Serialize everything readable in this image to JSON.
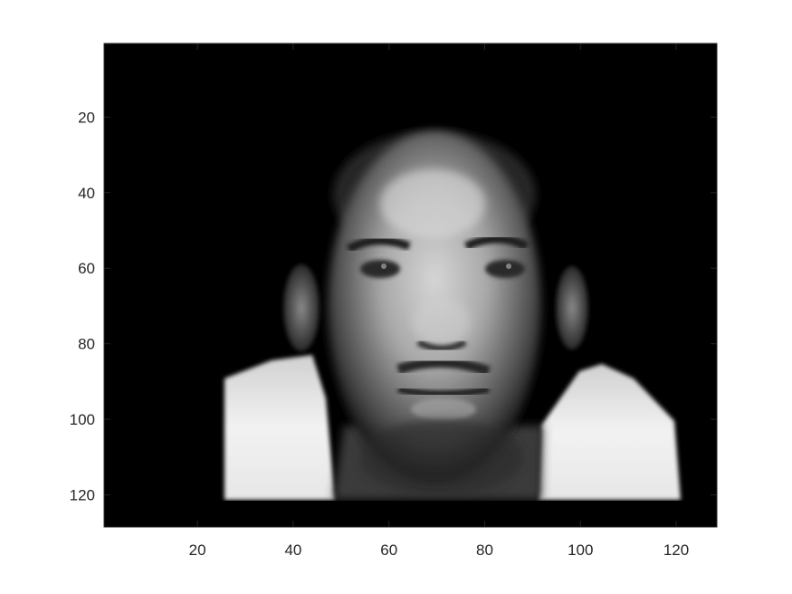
{
  "chart_data": {
    "type": "heatmap",
    "title": "",
    "xlabel": "",
    "ylabel": "",
    "colormap": "gray",
    "image_description_hidden": true,
    "xlim": [
      0.5,
      128.5
    ],
    "ylim": [
      0.5,
      128.5
    ],
    "y_direction": "reverse",
    "x_ticks": [
      20,
      40,
      60,
      80,
      100,
      120
    ],
    "y_ticks": [
      20,
      40,
      60,
      80,
      100,
      120
    ],
    "x_tick_labels": [
      "20",
      "40",
      "60",
      "80",
      "100",
      "120"
    ],
    "y_tick_labels": [
      "20",
      "40",
      "60",
      "80",
      "100",
      "120"
    ]
  },
  "colors": {
    "background": "#000000",
    "axis": "#262626",
    "tick_text": "#262626"
  }
}
